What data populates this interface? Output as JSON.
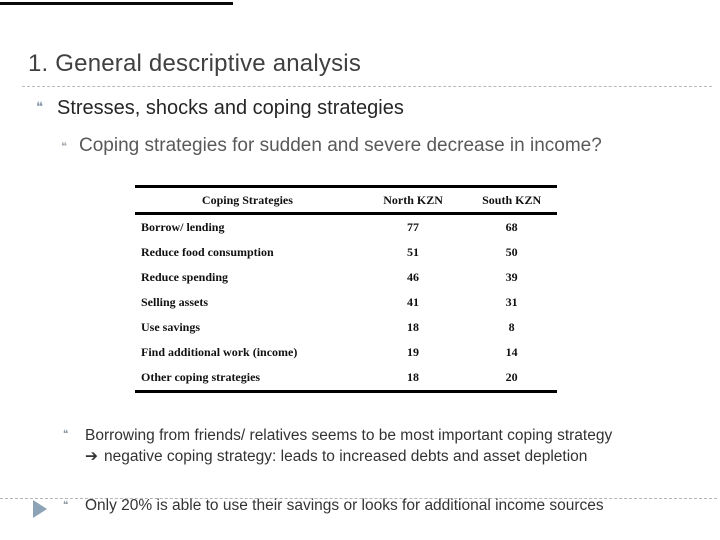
{
  "slide": {
    "title": "1. General descriptive analysis",
    "bullet_glyph": "❝",
    "section": "Stresses, shocks and coping strategies",
    "question": "Coping strategies for sudden and severe decrease in income?"
  },
  "chart_data": {
    "type": "table",
    "title": "Coping strategies for sudden and severe decrease in income?",
    "columns": [
      "Coping Strategies",
      "North KZN",
      "South KZN"
    ],
    "rows": [
      [
        "Borrow/ lending",
        77,
        68
      ],
      [
        "Reduce food consumption",
        51,
        50
      ],
      [
        "Reduce spending",
        46,
        39
      ],
      [
        "Selling assets",
        41,
        31
      ],
      [
        "Use savings",
        18,
        8
      ],
      [
        "Find additional work (income)",
        19,
        14
      ],
      [
        "Other coping strategies",
        18,
        20
      ]
    ]
  },
  "notes": {
    "arrow_glyph": "➔",
    "note1": "Borrowing from friends/ relatives seems to be most important coping strategy",
    "note1_arrow_text": "negative coping strategy: leads to increased debts and asset depletion",
    "note2": "Only 20% is able to use their savings or looks for additional income sources"
  },
  "colors": {
    "title_text": "#404040",
    "body_dark_text": "#262626",
    "body_gray_text": "#595959",
    "bullet_glyph": "#8d9aaa",
    "footer_triangle": "#8ca2b6",
    "table_border": "#000000",
    "dashed_divider": "#b5babe"
  }
}
